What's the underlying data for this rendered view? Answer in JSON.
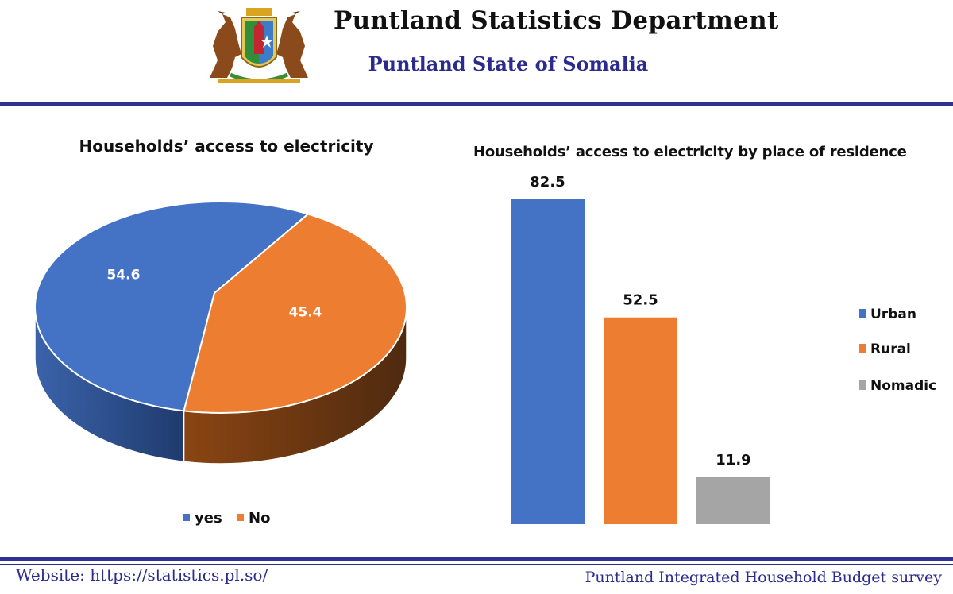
{
  "header": {
    "title": "Puntland Statistics Department",
    "subtitle": "Puntland State of Somalia"
  },
  "colors": {
    "blue": "#4472C4",
    "orange": "#ED7D31",
    "gray": "#A5A5A5",
    "navy": "#2e3192"
  },
  "chart_data": [
    {
      "type": "pie",
      "title": "Households’ access to electricity",
      "categories": [
        "yes",
        "No"
      ],
      "values": [
        54.6,
        45.4
      ],
      "data_labels": [
        "54.6",
        "45.4"
      ],
      "legend_position": "bottom",
      "style": "3d"
    },
    {
      "type": "bar",
      "title": "Households’ access to electricity by place of residence",
      "categories": [
        "Urban",
        "Rural",
        "Nomadic"
      ],
      "values": [
        82.5,
        52.5,
        11.9
      ],
      "data_labels": [
        "82.5",
        "52.5",
        "11.9"
      ],
      "legend_position": "right",
      "ylim": [
        0,
        85
      ]
    }
  ],
  "footer": {
    "website": "Website: https://statistics.pl.so/",
    "survey": "Puntland Integrated Household Budget survey"
  }
}
